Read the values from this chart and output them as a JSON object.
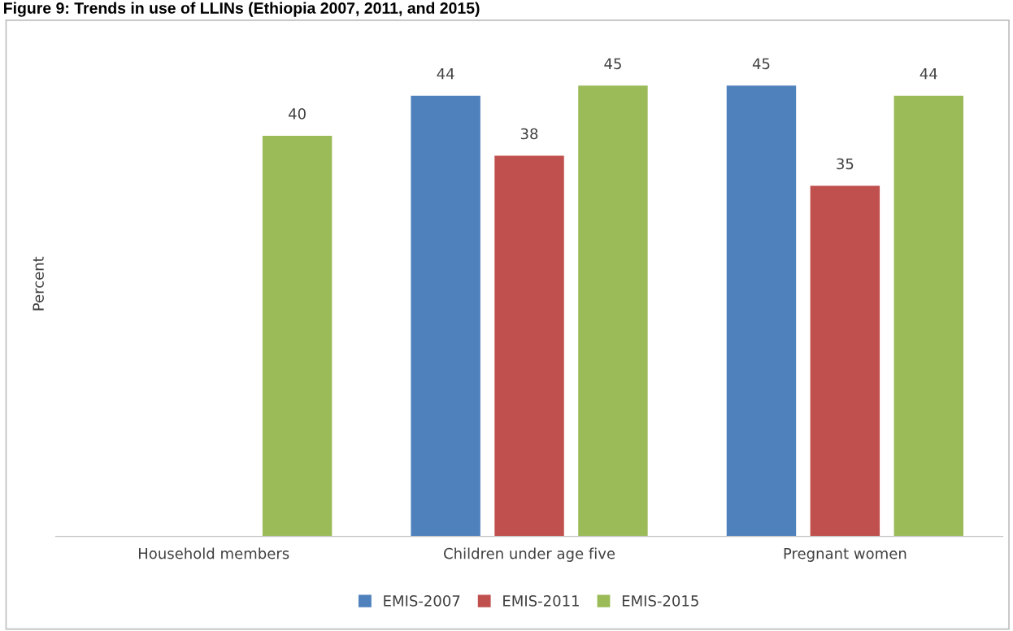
{
  "chart_data": {
    "type": "bar",
    "title": "Figure 9: Trends in use of LLINs (Ethiopia 2007, 2011, and 2015)",
    "ylabel": "Percent",
    "categories": [
      "Household members",
      "Children under age five",
      "Pregnant women"
    ],
    "series": [
      {
        "name": "EMIS-2007",
        "color": "#4f81bd",
        "values": [
          null,
          44,
          45
        ]
      },
      {
        "name": "EMIS-2011",
        "color": "#c0504d",
        "values": [
          null,
          38,
          35
        ]
      },
      {
        "name": "EMIS-2015",
        "color": "#9bbb59",
        "values": [
          40,
          45,
          44
        ]
      }
    ],
    "data_labels": true,
    "legend": "bottom",
    "tick_labels": "x"
  }
}
